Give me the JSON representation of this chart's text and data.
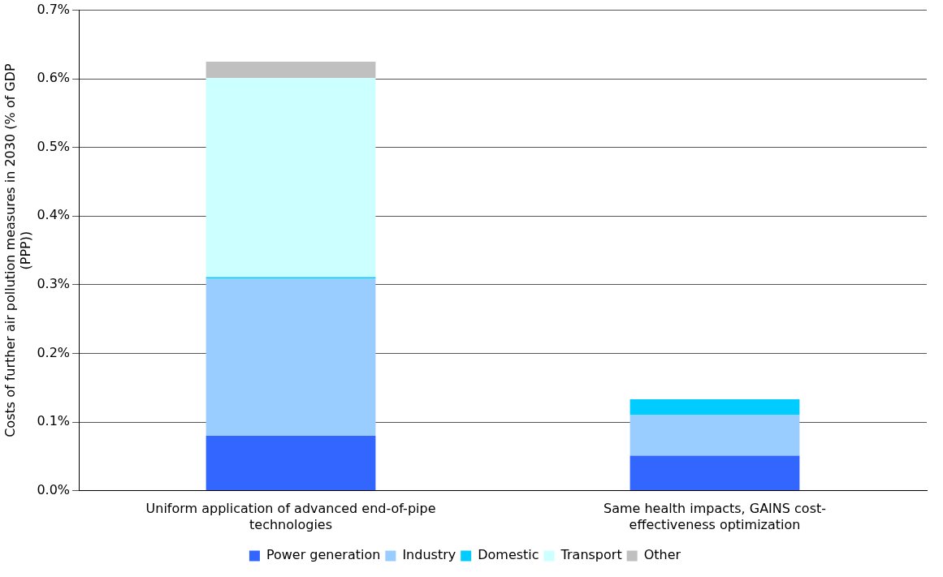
{
  "chart_data": {
    "type": "bar",
    "stacked": true,
    "categories": [
      "Uniform application of advanced end-of-pipe technologies",
      "Same health impacts, GAINS cost-effectiveness optimization"
    ],
    "ylabel": "Costs of further air pollution measures in 2030 (% of GDP (PPP))",
    "series": [
      {
        "name": "Power generation",
        "color": "#3366ff",
        "values": [
          0.08,
          0.051
        ]
      },
      {
        "name": "Industry",
        "color": "#99ccff",
        "values": [
          0.229,
          0.059
        ]
      },
      {
        "name": "Domestic",
        "color": "#00ccff",
        "values": [
          0.002,
          0.023
        ]
      },
      {
        "name": "Transport",
        "color": "#ccffff",
        "values": [
          0.29,
          0
        ]
      },
      {
        "name": "Other",
        "color": "#c0c0c0",
        "values": [
          0.024,
          0
        ]
      }
    ],
    "ylim": [
      0,
      0.7
    ],
    "yticks": [
      {
        "value": 0,
        "label": "0.0%"
      },
      {
        "value": 0.1,
        "label": "0.1%"
      },
      {
        "value": 0.2,
        "label": "0.2%"
      },
      {
        "value": 0.3,
        "label": "0.3%"
      },
      {
        "value": 0.4,
        "label": "0.4%"
      },
      {
        "value": 0.5,
        "label": "0.5%"
      },
      {
        "value": 0.6,
        "label": "0.6%"
      },
      {
        "value": 0.7,
        "label": "0.7%"
      }
    ],
    "grid": "y",
    "legend": "bottom"
  }
}
